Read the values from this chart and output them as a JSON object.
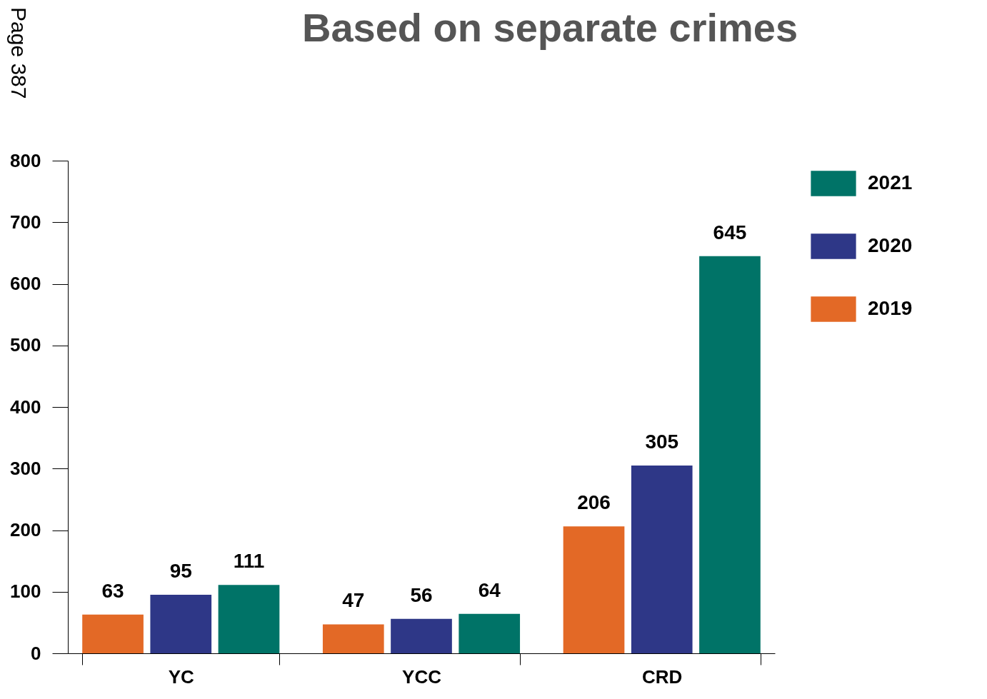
{
  "chart_data": {
    "type": "bar",
    "title": "Based on separate crimes",
    "categories": [
      "YC",
      "YCC",
      "CRD"
    ],
    "series": [
      {
        "name": "2019",
        "color": "#e36926",
        "values": [
          63,
          47,
          206
        ]
      },
      {
        "name": "2020",
        "color": "#2e3787",
        "values": [
          95,
          56,
          305
        ]
      },
      {
        "name": "2021",
        "color": "#007367",
        "values": [
          111,
          64,
          645
        ]
      }
    ],
    "ylim": [
      0,
      800
    ],
    "yticks": [
      0,
      100,
      200,
      300,
      400,
      500,
      600,
      700,
      800
    ],
    "data_labels": true,
    "grid": false,
    "legend": "top right",
    "annotations": [
      "Page 387"
    ]
  }
}
